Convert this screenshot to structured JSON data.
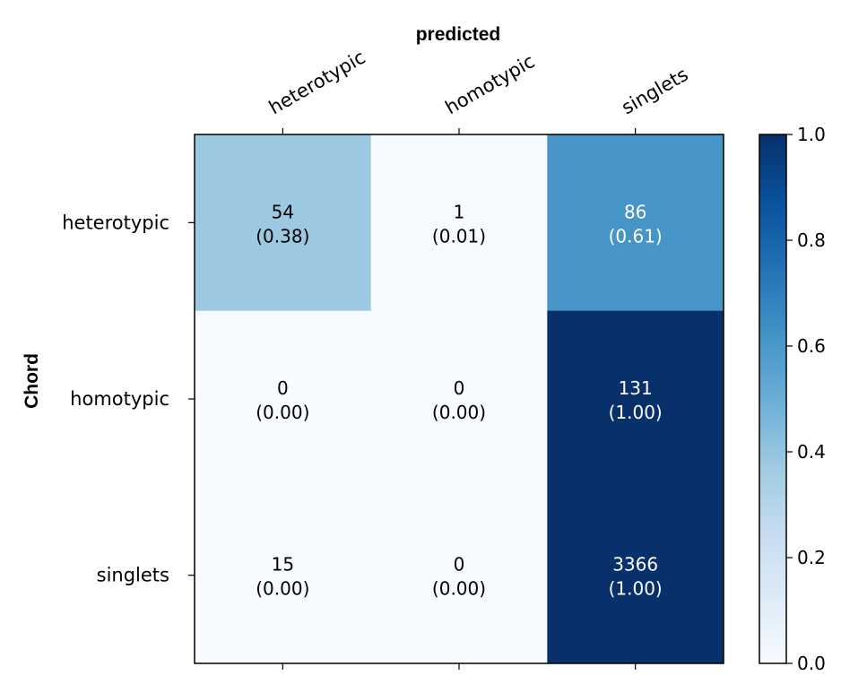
{
  "chart_data": {
    "type": "heatmap",
    "title": "predicted",
    "xlabel": "predicted",
    "ylabel": "Chord",
    "x_categories": [
      "heterotypic",
      "homotypic",
      "singlets"
    ],
    "y_categories": [
      "heterotypic",
      "homotypic",
      "singlets"
    ],
    "counts": [
      [
        54,
        1,
        86
      ],
      [
        0,
        0,
        131
      ],
      [
        15,
        0,
        3366
      ]
    ],
    "fractions": [
      [
        0.38,
        0.01,
        0.61
      ],
      [
        0.0,
        0.0,
        1.0
      ],
      [
        0.0,
        0.0,
        1.0
      ]
    ],
    "labels": [
      [
        "54",
        "1",
        "86"
      ],
      [
        "0",
        "0",
        "131"
      ],
      [
        "15",
        "0",
        "3366"
      ]
    ],
    "fraction_labels": [
      [
        "(0.38)",
        "(0.01)",
        "(0.61)"
      ],
      [
        "(0.00)",
        "(0.00)",
        "(1.00)"
      ],
      [
        "(0.00)",
        "(0.00)",
        "(1.00)"
      ]
    ],
    "colorbar": {
      "range": [
        0.0,
        1.0
      ],
      "ticks": [
        "0.0",
        "0.2",
        "0.4",
        "0.6",
        "0.8",
        "1.0"
      ],
      "colormap": "Blues"
    },
    "colors": {
      "low": "#f7fbff",
      "high": "#08306b",
      "text_dark": "#000000",
      "text_light": "#ffffff"
    }
  }
}
